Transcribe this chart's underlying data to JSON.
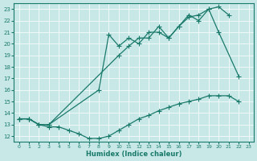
{
  "xlabel": "Humidex (Indice chaleur)",
  "bg_color": "#c8e8e8",
  "line_color": "#1a7a6a",
  "xlim": [
    -0.5,
    23.5
  ],
  "ylim": [
    11.5,
    23.5
  ],
  "xticks": [
    0,
    1,
    2,
    3,
    4,
    5,
    6,
    7,
    8,
    9,
    10,
    11,
    12,
    13,
    14,
    15,
    16,
    17,
    18,
    19,
    20,
    21,
    22,
    23
  ],
  "yticks": [
    12,
    13,
    14,
    15,
    16,
    17,
    18,
    19,
    20,
    21,
    22,
    23
  ],
  "line_top_x": [
    0,
    1,
    2,
    3,
    10,
    11,
    12,
    13,
    14,
    15,
    16,
    17,
    18,
    19,
    20,
    21
  ],
  "line_top_y": [
    13.5,
    13.5,
    13.0,
    13.0,
    19.0,
    19.8,
    20.5,
    20.5,
    21.5,
    20.5,
    21.5,
    22.3,
    22.5,
    23.0,
    23.2,
    22.5
  ],
  "line_mid_x": [
    0,
    1,
    2,
    3,
    8,
    9,
    10,
    11,
    12,
    13,
    14,
    15,
    16,
    17,
    18,
    19,
    20,
    22
  ],
  "line_mid_y": [
    13.5,
    13.5,
    13.0,
    13.0,
    16.0,
    20.8,
    19.8,
    20.5,
    20.0,
    21.0,
    21.0,
    20.5,
    21.5,
    22.5,
    22.0,
    23.0,
    21.0,
    17.2
  ],
  "line_bot_x": [
    0,
    1,
    2,
    3,
    4,
    5,
    6,
    7,
    8,
    9,
    10,
    11,
    12,
    13,
    14,
    15,
    16,
    17,
    18,
    19,
    20,
    21,
    22
  ],
  "line_bot_y": [
    13.5,
    13.5,
    13.0,
    12.8,
    12.8,
    12.5,
    12.2,
    11.8,
    11.8,
    12.0,
    12.5,
    13.0,
    13.5,
    13.8,
    14.2,
    14.5,
    14.8,
    15.0,
    15.2,
    15.5,
    15.5,
    15.5,
    15.0
  ]
}
